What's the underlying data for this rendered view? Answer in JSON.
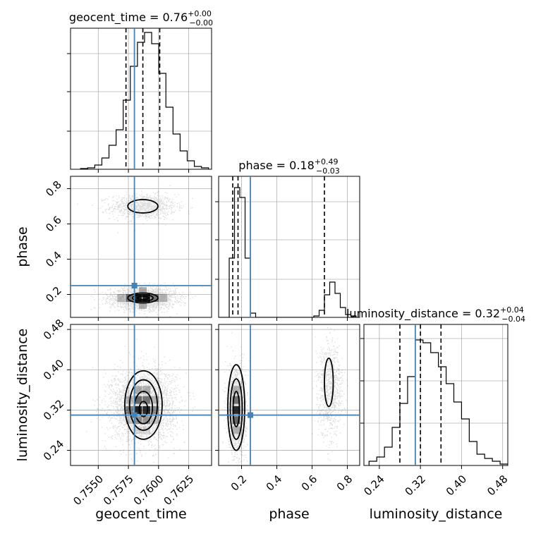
{
  "chart_data": {
    "type": "corner",
    "parameters": [
      {
        "name": "geocent_time",
        "label": "geocent_time",
        "title_main": "geocent_time = 0.76",
        "title_sup": "+0.00",
        "title_sub": "−0.00",
        "range": [
          0.7527,
          0.7644
        ],
        "ticks": [
          0.755,
          0.7575,
          0.76,
          0.7625
        ],
        "tick_labels": [
          "0.7550",
          "0.7575",
          "0.7600",
          "0.7625"
        ],
        "quantiles": [
          0.7573,
          0.7587,
          0.7601
        ],
        "truth": 0.758
      },
      {
        "name": "phase",
        "label": "phase",
        "title_main": "phase = 0.18",
        "title_sup": "+0.49",
        "title_sub": "−0.03",
        "range": [
          0.07,
          0.87
        ],
        "ticks": [
          0.2,
          0.4,
          0.6,
          0.8
        ],
        "tick_labels": [
          "0.2",
          "0.4",
          "0.6",
          "0.8"
        ],
        "quantiles": [
          0.15,
          0.18,
          0.67
        ],
        "truth": 0.25
      },
      {
        "name": "luminosity_distance",
        "label": "luminosity_distance",
        "title_main": "luminosity_distance = 0.32",
        "title_sup": "+0.04",
        "title_sub": "−0.04",
        "range": [
          0.21,
          0.49
        ],
        "ticks": [
          0.24,
          0.32,
          0.4,
          0.48
        ],
        "tick_labels": [
          "0.24",
          "0.32",
          "0.40",
          "0.48"
        ],
        "quantiles": [
          0.28,
          0.32,
          0.36
        ],
        "truth": 0.31
      }
    ],
    "histograms": {
      "geocent_time": {
        "bins": [
          0.75353,
          0.75412,
          0.75471,
          0.7553,
          0.75589,
          0.75648,
          0.75707,
          0.75766,
          0.75825,
          0.75884,
          0.75943,
          0.76002,
          0.76061,
          0.7612,
          0.76179,
          0.76238,
          0.76297,
          0.76356,
          0.76415
        ],
        "counts": [
          0.005,
          0.01,
          0.03,
          0.08,
          0.17,
          0.28,
          0.49,
          0.73,
          0.9,
          0.97,
          0.89,
          0.68,
          0.44,
          0.25,
          0.13,
          0.06,
          0.02,
          0.01
        ],
        "yticks": [
          0.27,
          0.55,
          0.82
        ]
      },
      "phase": {
        "bins": [
          0.07,
          0.1,
          0.13,
          0.16,
          0.19,
          0.22,
          0.25,
          0.28,
          0.31,
          0.34,
          0.37,
          0.4,
          0.43,
          0.46,
          0.49,
          0.52,
          0.55,
          0.58,
          0.61,
          0.64,
          0.67,
          0.7,
          0.73,
          0.76,
          0.79,
          0.82,
          0.85
        ],
        "counts": [
          0,
          0,
          0.42,
          0.92,
          0.85,
          0.42,
          0.03,
          0,
          0,
          0,
          0,
          0,
          0,
          0,
          0,
          0,
          0,
          0,
          0.01,
          0.05,
          0.16,
          0.25,
          0.17,
          0.07,
          0.02,
          0.01
        ],
        "yticks": [
          0.27,
          0.55,
          0.82
        ]
      },
      "luminosity_distance": {
        "bins": [
          0.22,
          0.235,
          0.25,
          0.265,
          0.28,
          0.295,
          0.31,
          0.325,
          0.34,
          0.355,
          0.37,
          0.385,
          0.4,
          0.415,
          0.43,
          0.445,
          0.46,
          0.475,
          0.49
        ],
        "counts": [
          0.03,
          0.06,
          0.13,
          0.27,
          0.44,
          0.63,
          0.89,
          0.87,
          0.8,
          0.7,
          0.58,
          0.45,
          0.33,
          0.17,
          0.08,
          0.05,
          0.03,
          0.01
        ],
        "yticks": [
          0.3,
          0.6,
          0.9
        ]
      }
    },
    "scatter_2d": [
      {
        "x": "geocent_time",
        "y": "phase",
        "clusters": [
          {
            "cx": 0.7587,
            "cy": 0.7,
            "sx": 0.00135,
            "sy": 0.035,
            "n": 1000
          },
          {
            "cx": 0.7587,
            "cy": 0.18,
            "sx": 0.00135,
            "sy": 0.03,
            "n": 2200
          }
        ],
        "density_cells": [
          {
            "x": 0.7583,
            "y": 0.18,
            "shade": 0.95
          },
          {
            "x": 0.759,
            "y": 0.18,
            "shade": 0.95
          },
          {
            "x": 0.7576,
            "y": 0.18,
            "shade": 0.55
          },
          {
            "x": 0.7597,
            "y": 0.18,
            "shade": 0.55
          },
          {
            "x": 0.7569,
            "y": 0.18,
            "shade": 0.25
          },
          {
            "x": 0.7604,
            "y": 0.18,
            "shade": 0.25
          },
          {
            "x": 0.7587,
            "y": 0.22,
            "shade": 0.3
          },
          {
            "x": 0.7587,
            "y": 0.14,
            "shade": 0.3
          }
        ],
        "contours": [
          {
            "cx": 0.7587,
            "cy": 0.7,
            "rx": 0.00125,
            "ry": 0.038
          },
          {
            "cx": 0.7587,
            "cy": 0.18,
            "rx": 0.00125,
            "ry": 0.028
          },
          {
            "cx": 0.7587,
            "cy": 0.18,
            "rx": 0.00085,
            "ry": 0.019
          },
          {
            "cx": 0.7587,
            "cy": 0.18,
            "rx": 0.00045,
            "ry": 0.01
          }
        ]
      },
      {
        "x": "geocent_time",
        "y": "luminosity_distance",
        "clusters": [
          {
            "cx": 0.7587,
            "cy": 0.33,
            "sx": 0.0013,
            "sy": 0.035,
            "n": 3200
          }
        ],
        "density_cells": [
          {
            "x": 0.7583,
            "y": 0.32,
            "shade": 0.95
          },
          {
            "x": 0.759,
            "y": 0.32,
            "shade": 0.9
          },
          {
            "x": 0.7583,
            "y": 0.34,
            "shade": 0.6
          },
          {
            "x": 0.759,
            "y": 0.34,
            "shade": 0.55
          },
          {
            "x": 0.7576,
            "y": 0.32,
            "shade": 0.5
          },
          {
            "x": 0.7597,
            "y": 0.32,
            "shade": 0.45
          },
          {
            "x": 0.7583,
            "y": 0.3,
            "shade": 0.45
          },
          {
            "x": 0.759,
            "y": 0.3,
            "shade": 0.4
          },
          {
            "x": 0.7583,
            "y": 0.36,
            "shade": 0.3
          },
          {
            "x": 0.759,
            "y": 0.36,
            "shade": 0.3
          },
          {
            "x": 0.7576,
            "y": 0.34,
            "shade": 0.25
          },
          {
            "x": 0.7597,
            "y": 0.34,
            "shade": 0.25
          },
          {
            "x": 0.7576,
            "y": 0.3,
            "shade": 0.2
          },
          {
            "x": 0.7597,
            "y": 0.3,
            "shade": 0.2
          },
          {
            "x": 0.7583,
            "y": 0.28,
            "shade": 0.15
          },
          {
            "x": 0.759,
            "y": 0.28,
            "shade": 0.15
          }
        ],
        "contours": [
          {
            "cx": 0.75875,
            "cy": 0.33,
            "rx": 0.00155,
            "ry": 0.068
          },
          {
            "cx": 0.75875,
            "cy": 0.33,
            "rx": 0.00115,
            "ry": 0.05
          },
          {
            "cx": 0.75875,
            "cy": 0.325,
            "rx": 0.00075,
            "ry": 0.032
          },
          {
            "cx": 0.75875,
            "cy": 0.322,
            "rx": 0.00035,
            "ry": 0.015
          }
        ]
      },
      {
        "x": "phase",
        "y": "luminosity_distance",
        "clusters": [
          {
            "cx": 0.17,
            "cy": 0.32,
            "sx": 0.025,
            "sy": 0.04,
            "n": 2000
          },
          {
            "cx": 0.7,
            "cy": 0.36,
            "sx": 0.035,
            "sy": 0.045,
            "n": 900
          }
        ],
        "density_cells": [
          {
            "x": 0.17,
            "y": 0.32,
            "shade": 0.9
          },
          {
            "x": 0.17,
            "y": 0.3,
            "shade": 0.6
          },
          {
            "x": 0.17,
            "y": 0.34,
            "shade": 0.55
          },
          {
            "x": 0.17,
            "y": 0.28,
            "shade": 0.25
          },
          {
            "x": 0.17,
            "y": 0.36,
            "shade": 0.25
          }
        ],
        "contours": [
          {
            "cx": 0.17,
            "cy": 0.325,
            "rx": 0.048,
            "ry": 0.085
          },
          {
            "cx": 0.17,
            "cy": 0.322,
            "rx": 0.034,
            "ry": 0.06
          },
          {
            "cx": 0.17,
            "cy": 0.322,
            "rx": 0.018,
            "ry": 0.035
          },
          {
            "cx": 0.695,
            "cy": 0.375,
            "rx": 0.025,
            "ry": 0.048
          }
        ]
      }
    ],
    "colors": {
      "truth": "#4682b4",
      "contour": "#000000",
      "points": "#000000",
      "grid": "#b0b0b0"
    }
  }
}
